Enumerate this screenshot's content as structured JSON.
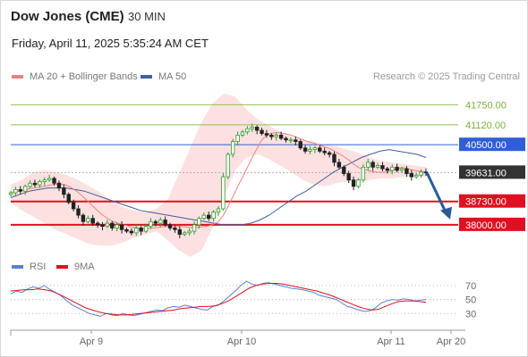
{
  "header": {
    "title": "Dow Jones (CME)",
    "timeframe": "30 MIN",
    "datetime": "Friday, April 11, 2025 5:35:24 AM CET"
  },
  "legend": {
    "ma20_label": "MA 20 + Bollinger Bands",
    "ma50_label": "MA 50",
    "rsi_label": "RSI",
    "rsi_ma_label": "9MA"
  },
  "credit": "Research © 2025 Trading Central",
  "colors": {
    "ma20": "#f08080",
    "bollinger_fill": "#fde1e1",
    "ma50": "#3f5f9f",
    "resistance": "#8fc24a",
    "pivot": "#2f5fd6",
    "support": "#e01020",
    "last_price": "#333333",
    "candle_up": "#2e9e2e",
    "candle_down": "#222222",
    "rsi": "#5b7fd6",
    "rsi_ma": "#e01020",
    "arrow": "#2a5a9a"
  },
  "chart_data": [
    {
      "type": "candlestick",
      "name": "price",
      "x_labels": [
        "Apr 9",
        "Apr 10",
        "Apr 11",
        "Apr 20"
      ],
      "ylim": [
        37300,
        42400
      ],
      "levels": [
        {
          "value": 41750,
          "label": "41750.00",
          "role": "resistance"
        },
        {
          "value": 41120,
          "label": "41120.00",
          "role": "resistance"
        },
        {
          "value": 40500,
          "label": "40500.00",
          "role": "pivot"
        },
        {
          "value": 39631,
          "label": "39631.00",
          "role": "last"
        },
        {
          "value": 38730,
          "label": "38730.00",
          "role": "support"
        },
        {
          "value": 38000,
          "label": "38000.00",
          "role": "support"
        }
      ],
      "close_series": [
        39000,
        39100,
        39050,
        39200,
        39300,
        39250,
        39350,
        39400,
        39450,
        39300,
        39150,
        38950,
        38700,
        38500,
        38300,
        38100,
        38200,
        38050,
        38000,
        37950,
        38050,
        37900,
        38000,
        37850,
        37800,
        37750,
        37900,
        37800,
        37950,
        38100,
        38050,
        38150,
        38000,
        37900,
        37850,
        37700,
        37750,
        37800,
        38000,
        38200,
        38300,
        38200,
        38400,
        38500,
        39500,
        40200,
        40600,
        40800,
        40900,
        41000,
        41050,
        40950,
        40850,
        40800,
        40750,
        40800,
        40700,
        40650,
        40650,
        40600,
        40400,
        40300,
        40350,
        40400,
        40300,
        40250,
        40200,
        39950,
        39800,
        39600,
        39400,
        39200,
        39400,
        39800,
        39950,
        39800,
        39850,
        39750,
        39700,
        39800,
        39700,
        39750,
        39600,
        39500,
        39550,
        39650,
        39631
      ],
      "ma50_series": [
        38850,
        38950,
        39050,
        39100,
        39150,
        39150,
        39150,
        39100,
        39050,
        38950,
        38850,
        38750,
        38650,
        38550,
        38450,
        38400,
        38350,
        38300,
        38250,
        38200,
        38150,
        38100,
        38050,
        38000,
        38000,
        38000,
        38050,
        38150,
        38300,
        38500,
        38700,
        38900,
        39050,
        39250,
        39450,
        39650,
        39800,
        39950,
        40100,
        40200,
        40300,
        40350,
        40300,
        40250,
        40200,
        40100
      ],
      "bollinger": {
        "upper": [
          39250,
          39400,
          39650,
          39700,
          39650,
          39550,
          39400,
          39200,
          39000,
          38750,
          38550,
          38450,
          38400,
          38500,
          38800,
          39600,
          40400,
          41200,
          41800,
          42100,
          42000,
          41600,
          41300,
          41100,
          40900,
          40750,
          40650,
          40600,
          40500,
          40450,
          40350,
          40250,
          40100,
          40000,
          39950,
          39900,
          39850,
          39800
        ],
        "lower": [
          38700,
          38450,
          38250,
          38050,
          37850,
          37700,
          37550,
          37400,
          37350,
          37350,
          37450,
          37600,
          37700,
          37800,
          37500,
          37200,
          37000,
          37200,
          37900,
          38900,
          39700,
          40100,
          40200,
          40050,
          39850,
          39650,
          39400,
          39250,
          39200,
          39300,
          39350,
          39350,
          39400,
          39450,
          39450,
          39500,
          39500,
          39500
        ]
      }
    },
    {
      "type": "line",
      "name": "RSI",
      "yticks": [
        70,
        50,
        30
      ],
      "ylim": [
        10,
        80
      ],
      "rsi_series": [
        58,
        62,
        60,
        65,
        68,
        66,
        70,
        64,
        60,
        55,
        48,
        42,
        38,
        34,
        30,
        28,
        26,
        30,
        28,
        27,
        30,
        28,
        27,
        29,
        31,
        33,
        35,
        34,
        38,
        40,
        39,
        42,
        40,
        38,
        36,
        35,
        40,
        42,
        48,
        55,
        62,
        70,
        76,
        72,
        70,
        73,
        74,
        72,
        70,
        68,
        66,
        65,
        64,
        62,
        60,
        56,
        54,
        52,
        50,
        45,
        40,
        38,
        35,
        33,
        34,
        38,
        45,
        48,
        50,
        49,
        51,
        50,
        48,
        49,
        50
      ],
      "rsi_ma_series": [
        62,
        63,
        64,
        64,
        65,
        64,
        62,
        58,
        53,
        48,
        43,
        38,
        35,
        32,
        30,
        29,
        28,
        28,
        29,
        30,
        31,
        32,
        33,
        34,
        35,
        37,
        38,
        39,
        40,
        40,
        41,
        44,
        48,
        54,
        60,
        66,
        70,
        72,
        73,
        73,
        72,
        70,
        68,
        66,
        64,
        62,
        59,
        56,
        52,
        48,
        44,
        40,
        37,
        35,
        36,
        40,
        44,
        47,
        48,
        48,
        47,
        46
      ]
    }
  ]
}
